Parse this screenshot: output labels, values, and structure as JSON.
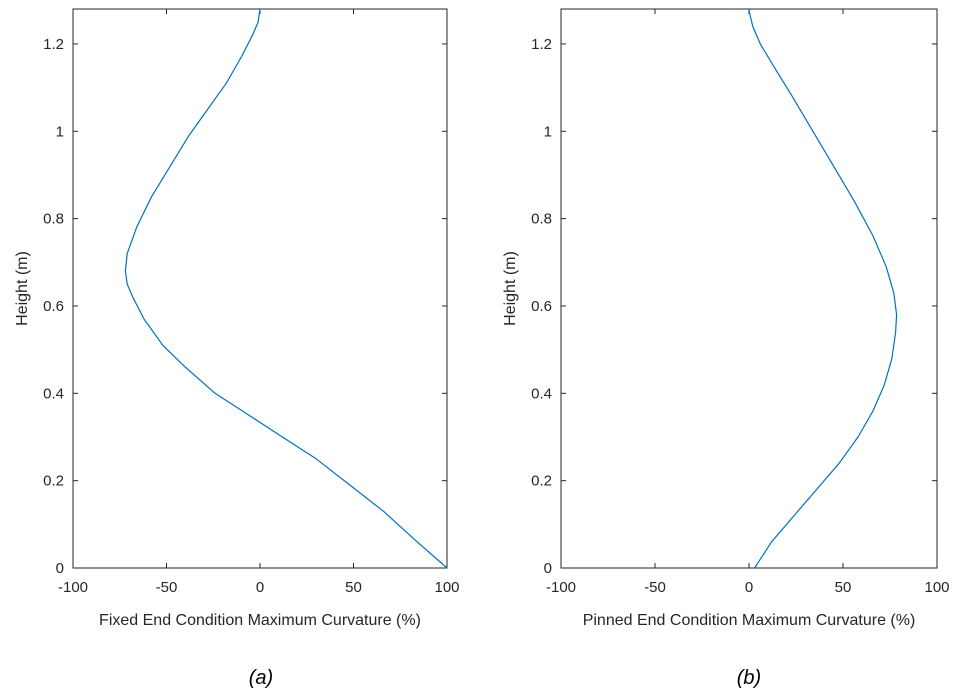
{
  "chart_data": [
    {
      "type": "line",
      "caption": "(a)",
      "xlabel": "Fixed End Condition Maximum Curvature (%)",
      "ylabel": "Height (m)",
      "xlim": [
        -100,
        100
      ],
      "ylim": [
        0,
        1.28
      ],
      "xticks": [
        -100,
        -50,
        0,
        50,
        100
      ],
      "yticks": [
        0,
        0.2,
        0.4,
        0.6,
        0.8,
        1,
        1.2
      ],
      "grid": false,
      "line_color": "#0072BD",
      "series": [
        {
          "x": [
            100,
            84,
            66,
            48,
            30,
            12,
            -6,
            -24,
            -40,
            -52,
            -62,
            -68,
            -71,
            -72,
            -71,
            -66,
            -58,
            -48,
            -38,
            -28,
            -18,
            -10,
            -4,
            -1,
            0
          ],
          "y": [
            0,
            0.06,
            0.13,
            0.19,
            0.25,
            0.3,
            0.35,
            0.4,
            0.46,
            0.51,
            0.57,
            0.62,
            0.65,
            0.68,
            0.72,
            0.78,
            0.85,
            0.92,
            0.99,
            1.05,
            1.11,
            1.17,
            1.22,
            1.25,
            1.28
          ]
        }
      ]
    },
    {
      "type": "line",
      "caption": "(b)",
      "xlabel": "Pinned End Condition Maximum Curvature (%)",
      "ylabel": "Height (m)",
      "xlim": [
        -100,
        100
      ],
      "ylim": [
        0,
        1.28
      ],
      "xticks": [
        -100,
        -50,
        0,
        50,
        100
      ],
      "yticks": [
        0,
        0.2,
        0.4,
        0.6,
        0.8,
        1,
        1.2
      ],
      "grid": false,
      "line_color": "#0072BD",
      "series": [
        {
          "x": [
            3,
            12,
            24,
            36,
            48,
            58,
            66,
            72,
            76,
            78,
            78.5,
            77,
            73,
            66,
            56,
            45,
            34,
            23,
            13,
            6,
            2,
            0.3,
            0
          ],
          "y": [
            0,
            0.06,
            0.12,
            0.18,
            0.24,
            0.3,
            0.36,
            0.42,
            0.48,
            0.54,
            0.58,
            0.63,
            0.69,
            0.76,
            0.84,
            0.92,
            1.0,
            1.08,
            1.15,
            1.2,
            1.24,
            1.27,
            1.28
          ]
        }
      ]
    }
  ]
}
